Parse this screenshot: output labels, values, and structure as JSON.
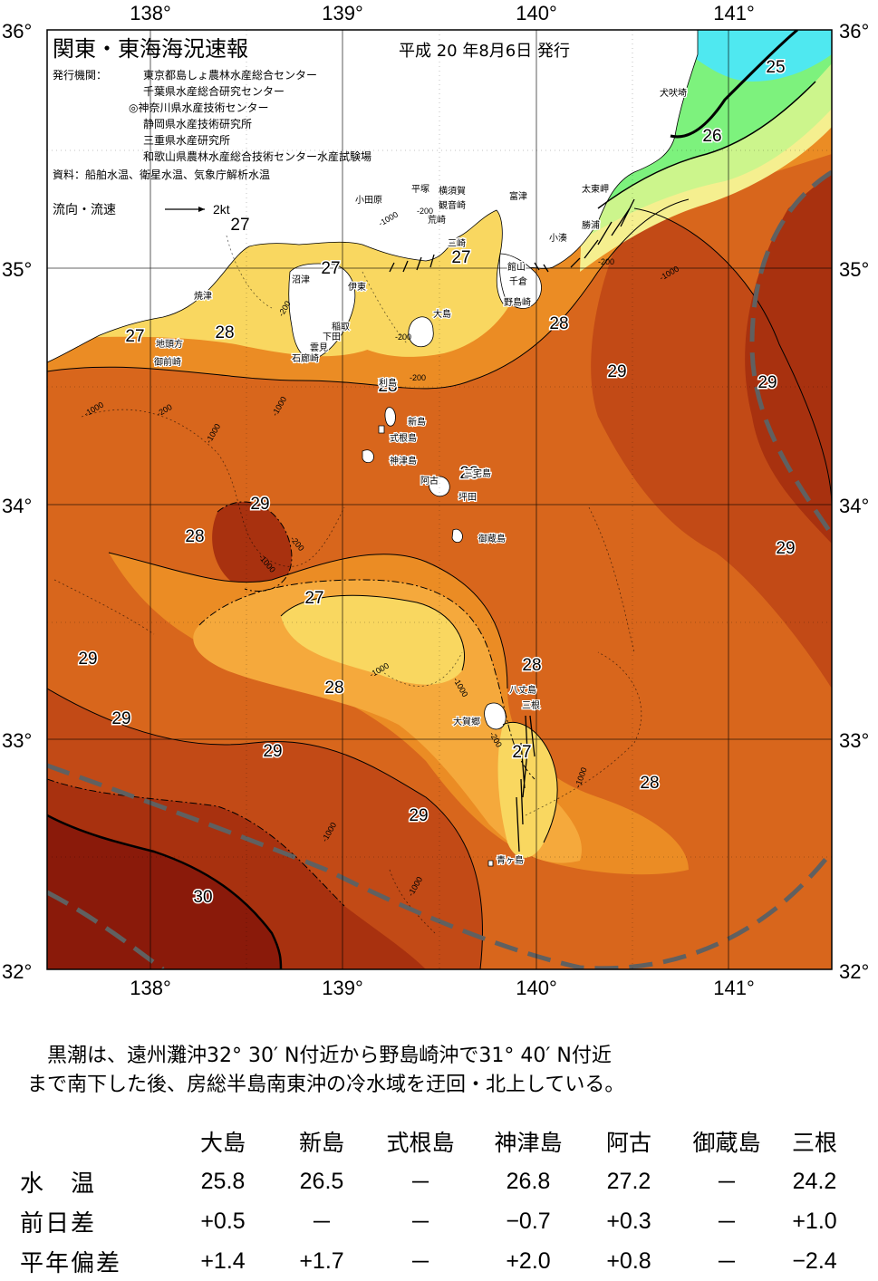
{
  "map": {
    "title": "関東・東海海況速報",
    "date": "平成 20 年8月6日 発行",
    "agency_label": "発行機関：",
    "agencies": [
      "東京都島しょ農林水産総合センター",
      "千葉県水産総合研究センター",
      "◎神奈川県水産技術センター",
      "静岡県水産技術研究所",
      "三重県水産研究所",
      "和歌山県農林水産総合技術センター水産試験場"
    ],
    "source": "資料：船舶水温、衛星水温、気象庁解析水温",
    "current_label": "流向・流速",
    "current_scale": "2kt",
    "lon_labels": [
      "138°",
      "139°",
      "140°",
      "141°"
    ],
    "lat_labels": [
      "36°",
      "35°",
      "34°",
      "33°",
      "32°"
    ],
    "temp_labels": [
      {
        "text": "25"
      },
      {
        "text": "26"
      },
      {
        "text": "27"
      },
      {
        "text": "27"
      },
      {
        "text": "27"
      },
      {
        "text": "27"
      },
      {
        "text": "28"
      },
      {
        "text": "28"
      },
      {
        "text": "28"
      },
      {
        "text": "28"
      },
      {
        "text": "28"
      },
      {
        "text": "28"
      },
      {
        "text": "28"
      },
      {
        "text": "28"
      },
      {
        "text": "29"
      },
      {
        "text": "29"
      },
      {
        "text": "29"
      },
      {
        "text": "29"
      },
      {
        "text": "29"
      },
      {
        "text": "29"
      },
      {
        "text": "29"
      },
      {
        "text": "29"
      },
      {
        "text": "27"
      },
      {
        "text": "27"
      },
      {
        "text": "30"
      }
    ],
    "depth_labels": [
      "-200",
      "-1000"
    ],
    "places": [
      "犬吠埼",
      "太東岬",
      "勝浦",
      "小湊",
      "富津",
      "横須賀",
      "観音崎",
      "荒崎",
      "三崎",
      "平塚",
      "小田原",
      "館山",
      "千倉",
      "野島崎",
      "大島",
      "伊東",
      "沼津",
      "稲取",
      "下田",
      "雲見",
      "石廊崎",
      "焼津",
      "地頭方",
      "御前崎",
      "利島",
      "新島",
      "式根島",
      "神津島",
      "三宅島",
      "阿古",
      "坪田",
      "御蔵島",
      "八丈島",
      "三根",
      "大賀郷",
      "青ヶ島"
    ],
    "colors": {
      "t24": "#4fe8f0",
      "t25": "#7df27d",
      "t26": "#ccf58c",
      "t265": "#f5ef8f",
      "t27": "#f9d760",
      "t275": "#f5a93c",
      "t28": "#eb8c24",
      "t285": "#d8661c",
      "t29": "#c24a16",
      "t295": "#a8310f",
      "t30": "#8a1a0a",
      "land": "#ffffff",
      "kuroshio": "#606060"
    }
  },
  "summary": {
    "line1": "　黒潮は、遠州灘沖32° 30′ N付近から野島崎沖で31° 40′ N付近",
    "line2": "まで南下した後、房総半島南東沖の冷水域を迂回・北上している。"
  },
  "table": {
    "columns": [
      "大島",
      "新島",
      "式根島",
      "神津島",
      "阿古",
      "御蔵島",
      "三根"
    ],
    "rows": [
      {
        "label": "水　温",
        "values": [
          "25.8",
          "26.5",
          "－",
          "26.8",
          "27.2",
          "－",
          "24.2"
        ]
      },
      {
        "label": "前日差",
        "values": [
          "+0.5",
          "－",
          "－",
          "−0.7",
          "+0.3",
          "－",
          "+1.0"
        ]
      },
      {
        "label": "平年偏差",
        "values": [
          "+1.4",
          "+1.7",
          "－",
          "+2.0",
          "+0.8",
          "－",
          "−2.4"
        ]
      }
    ]
  }
}
